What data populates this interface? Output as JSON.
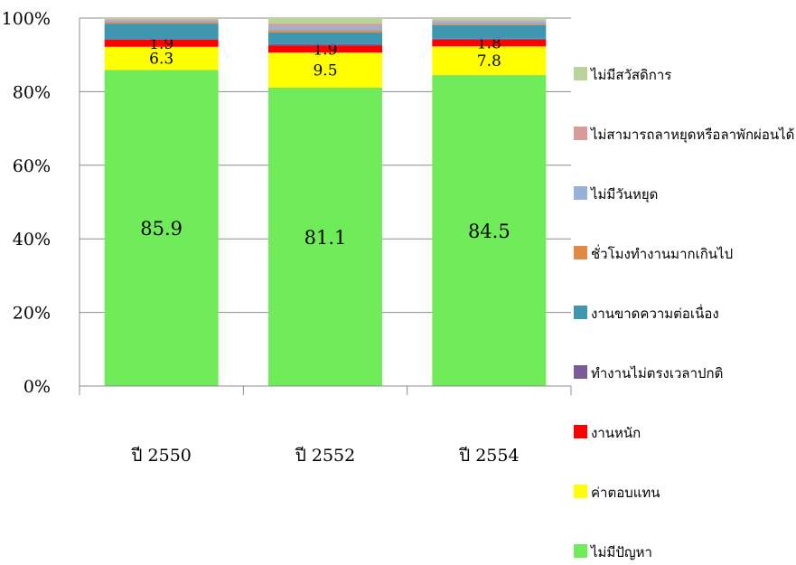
{
  "chart_data": {
    "type": "bar",
    "stacked": true,
    "percent": true,
    "title": "",
    "xlabel": "",
    "ylabel": "",
    "ylim": [
      0,
      100
    ],
    "y_ticks": [
      "0%",
      "20%",
      "40%",
      "60%",
      "80%",
      "100%"
    ],
    "grid": true,
    "legend_position": "right",
    "categories": [
      "ปี 2550",
      "ปี 2552",
      "ปี 2554"
    ],
    "series": [
      {
        "name": "ไม่มีปัญหา",
        "color": "#70EC5A",
        "values": [
          85.9,
          81.1,
          84.5
        ],
        "labels": [
          "85.9",
          "81.1",
          "84.5"
        ]
      },
      {
        "name": "ค่าตอบแทน",
        "color": "#FFFF00",
        "values": [
          6.3,
          9.5,
          7.8
        ],
        "labels": [
          "6.3",
          "9.5",
          "7.8"
        ]
      },
      {
        "name": "งานหนัก",
        "color": "#FF0000",
        "values": [
          1.9,
          1.9,
          1.8
        ],
        "labels": [
          "1.9",
          "1.9",
          "1.8"
        ]
      },
      {
        "name": "ทำงานไม่ตรงเวลาปกติ",
        "color": "#7A5C96",
        "values": [
          0.2,
          0.4,
          0.3
        ],
        "labels": [
          "",
          "",
          ""
        ]
      },
      {
        "name": "งานขาดความต่อเนื่อง",
        "color": "#3E96AF",
        "values": [
          4.2,
          3.2,
          3.7
        ],
        "labels": [
          "",
          "",
          ""
        ]
      },
      {
        "name": "ชั่วโมงทำงานมากเกินไป",
        "color": "#E08A45",
        "values": [
          0.4,
          0.6,
          0.3
        ],
        "labels": [
          "",
          "",
          ""
        ]
      },
      {
        "name": "ไม่มีวันหยุด",
        "color": "#98B1D6",
        "values": [
          0.5,
          1.1,
          0.8
        ],
        "labels": [
          "",
          "",
          ""
        ]
      },
      {
        "name": "ไม่สามารถลาหยุดหรือลาพักผ่อนได้",
        "color": "#D89A9A",
        "values": [
          0.3,
          0.6,
          0.2
        ],
        "labels": [
          "",
          "",
          ""
        ]
      },
      {
        "name": "ไม่มีสวัสดิการ",
        "color": "#B9D39A",
        "values": [
          0.3,
          1.6,
          0.6
        ],
        "labels": [
          "",
          "",
          ""
        ]
      }
    ]
  }
}
